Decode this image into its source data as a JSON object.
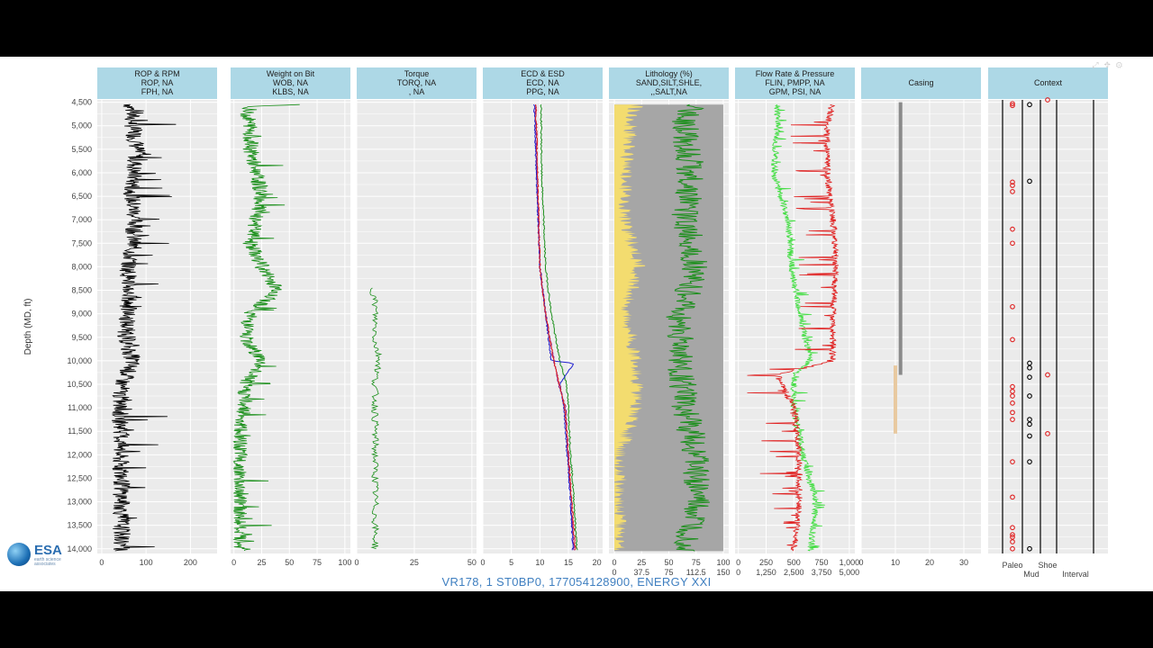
{
  "footer": "VR178, 1 ST0BP0, 177054128900, ENERGY XXI",
  "logo": {
    "abbr": "ESA",
    "tagline": "earth science associates"
  },
  "colors": {
    "header_bg": "#add8e6",
    "panel_bg": "#ebebeb",
    "grid": "#ffffff",
    "black": "#000000",
    "green": "#1a8f1a",
    "light_green": "#44dd44",
    "red": "#e02020",
    "blue": "#2020d0",
    "purple": "#8b1a8b",
    "sand": "#f3dc6f",
    "shale": "#a6a6a6",
    "casing_gray": "#8a8a8a",
    "casing_tan": "#e8c9a0"
  },
  "chart_data": {
    "type": "line",
    "y_axis": {
      "label": "Depth (MD, ft)",
      "range": [
        4450,
        14100
      ],
      "reversed": true,
      "ticks": [
        "4,500",
        "5,000",
        "5,500",
        "6,000",
        "6,500",
        "7,000",
        "7,500",
        "8,000",
        "8,500",
        "9,000",
        "9,500",
        "10,000",
        "10,500",
        "11,000",
        "11,500",
        "12,000",
        "12,500",
        "13,000",
        "13,500",
        "14,000"
      ]
    },
    "tracks": [
      {
        "title": [
          "ROP & RPM",
          "ROP, NA",
          "FPH, NA"
        ],
        "xlim": [
          -10,
          260
        ],
        "ticks": [
          "0",
          "100",
          "200"
        ],
        "tick_values": [
          0,
          100,
          200
        ],
        "series": [
          {
            "color": "black",
            "depth": [
              4550,
              5000,
              5500,
              6000,
              6500,
              7000,
              7500,
              8000,
              8500,
              9000,
              9500,
              10000,
              10500,
              11000,
              11500,
              12000,
              12500,
              13000,
              13500,
              14050
            ],
            "values": [
              65,
              70,
              80,
              72,
              68,
              75,
              70,
              60,
              62,
              58,
              55,
              70,
              45,
              40,
              45,
              40,
              45,
              45,
              45,
              45
            ]
          }
        ]
      },
      {
        "title": [
          "Weight on Bit",
          "WOB, NA",
          "KLBS, NA"
        ],
        "xlim": [
          -3,
          105
        ],
        "ticks": [
          "0",
          "25",
          "50",
          "75",
          "100"
        ],
        "tick_values": [
          0,
          25,
          50,
          75,
          100
        ],
        "series": [
          {
            "color": "green",
            "depth": [
              4550,
              4600,
              5000,
              5500,
              6000,
              6500,
              7000,
              7500,
              8000,
              8500,
              9000,
              9500,
              10000,
              10500,
              11000,
              11500,
              12000,
              12500,
              13000,
              13500,
              14050
            ],
            "values": [
              55,
              10,
              15,
              15,
              20,
              25,
              20,
              15,
              25,
              40,
              15,
              10,
              25,
              10,
              10,
              5,
              5,
              5,
              5,
              5,
              5
            ]
          }
        ]
      },
      {
        "title": [
          "Torque",
          "TORQ, NA",
          ", NA"
        ],
        "xlim": [
          0,
          52
        ],
        "ticks": [
          "0",
          "25",
          "50"
        ],
        "tick_values": [
          0,
          25,
          50
        ],
        "series": [
          {
            "color": "green",
            "depth": [
              8450,
              8800,
              9200,
              9600,
              10000,
              10400,
              10800,
              11200,
              11600,
              12000,
              12400,
              12800,
              13200,
              13600,
              14000
            ],
            "values": [
              7,
              8,
              8,
              8,
              10,
              8,
              8,
              8,
              8,
              8,
              8,
              8,
              8,
              8,
              8
            ]
          }
        ]
      },
      {
        "title": [
          "ECD & ESD",
          "ECD, NA",
          "PPG, NA"
        ],
        "xlim": [
          0,
          21
        ],
        "ticks": [
          "0",
          "5",
          "10",
          "15",
          "20"
        ],
        "tick_values": [
          0,
          5,
          10,
          15,
          20
        ],
        "series": [
          {
            "color": "green",
            "depth": [
              4550,
              6000,
              8000,
              9000,
              10000,
              10500,
              11000,
              12000,
              13000,
              14050
            ],
            "values": [
              10.2,
              10.3,
              11,
              12,
              13.5,
              14.7,
              15,
              15.4,
              16,
              16.5
            ]
          },
          {
            "color": "purple",
            "depth": [
              4550,
              6000,
              8000,
              9000,
              10000,
              10500,
              11000,
              12000,
              13000,
              14050
            ],
            "values": [
              9.2,
              9.5,
              10,
              11,
              12.5,
              13.3,
              14.5,
              15,
              15.5,
              16
            ]
          },
          {
            "color": "blue",
            "depth": [
              4550,
              6000,
              8000,
              9000,
              10000,
              10050,
              10500,
              11000,
              12000,
              13000,
              14050
            ],
            "values": [
              9,
              9.4,
              10,
              11,
              12,
              16,
              13.5,
              14.2,
              14.8,
              15.4,
              15.8
            ]
          },
          {
            "color": "red",
            "depth": [
              4550,
              6000,
              8000,
              9000,
              10000,
              10500,
              11000,
              12000,
              13000,
              14050
            ],
            "values": [
              9.3,
              9.6,
              10,
              11,
              12.4,
              13.4,
              14.4,
              15,
              15.6,
              16.2
            ]
          }
        ]
      },
      {
        "title": [
          "Lithology (%)",
          "SAND,SILT,SHLE,",
          ",,SALT,NA"
        ],
        "xlim": [
          -5,
          105
        ],
        "ticks": [
          "0",
          "25",
          "50",
          "75",
          "100"
        ],
        "tick_values": [
          0,
          25,
          50,
          75,
          100
        ],
        "ticks2": [
          "0",
          "37.5",
          "75",
          "112.5",
          "150"
        ],
        "series": [
          {
            "name": "sand",
            "color": "sand",
            "depth": [
              4550,
              5000,
              6000,
              7000,
              8000,
              9000,
              10000,
              11000,
              12000,
              13000,
              14050
            ],
            "values": [
              20,
              15,
              10,
              10,
              22,
              10,
              20,
              20,
              5,
              5,
              5
            ]
          },
          {
            "name": "silt",
            "color": "green",
            "depth": [
              4550,
              5000,
              6000,
              7000,
              8000,
              9000,
              10000,
              11000,
              12000,
              13000,
              14050
            ],
            "values": [
              70,
              65,
              70,
              65,
              75,
              60,
              60,
              65,
              75,
              75,
              65
            ]
          }
        ]
      },
      {
        "title": [
          "Flow Rate & Pressure",
          "FLIN, PMPP, NA",
          "GPM, PSI, NA"
        ],
        "xlim": [
          -3,
          105
        ],
        "ticks": [
          "0",
          "250",
          "500",
          "750",
          "1,000"
        ],
        "tick_values": [
          0,
          25,
          50,
          75,
          100
        ],
        "ticks2": [
          "0",
          "1,250",
          "2,500",
          "3,750",
          "5,000"
        ],
        "series": [
          {
            "color": "light_green",
            "depth": [
              4550,
              5000,
              6000,
              7000,
              8000,
              9000,
              10000,
              10300,
              11000,
              12000,
              13000,
              14050
            ],
            "values": [
              35,
              35,
              32,
              45,
              48,
              55,
              65,
              50,
              50,
              58,
              70,
              65
            ]
          },
          {
            "color": "red",
            "depth": [
              4550,
              5000,
              6000,
              7000,
              8000,
              9000,
              10000,
              10300,
              11000,
              12000,
              13000,
              14050
            ],
            "values": [
              85,
              80,
              80,
              85,
              88,
              85,
              85,
              35,
              50,
              55,
              55,
              50
            ]
          }
        ]
      },
      {
        "title": [
          "",
          "Casing",
          ""
        ],
        "xlim": [
          0,
          35
        ],
        "ticks": [
          "0",
          "10",
          "20",
          "30"
        ],
        "tick_values": [
          0,
          10,
          20,
          30
        ],
        "casing": [
          {
            "color": "casing_gray",
            "x": 11.5,
            "top": 4500,
            "bottom": 10300
          },
          {
            "color": "casing_tan",
            "x": 10,
            "top": 10100,
            "bottom": 11550
          }
        ]
      },
      {
        "title": [
          "",
          "Context",
          ""
        ],
        "columns": [
          "Paleo",
          "Mud",
          "Shoe",
          "Interval"
        ],
        "paleo_depths": [
          4530,
          4570,
          6200,
          6270,
          6400,
          7200,
          7500,
          8850,
          9550,
          10550,
          10650,
          10750,
          10900,
          11100,
          11250,
          12150,
          12900,
          13550,
          13700,
          13750,
          13850,
          14000
        ],
        "mud_depths": [
          4550,
          6180,
          10050,
          10150,
          10350,
          10750,
          11250,
          11350,
          11600,
          12150,
          14000
        ],
        "shoe_depths": [
          4450,
          10300,
          11550
        ]
      }
    ]
  }
}
